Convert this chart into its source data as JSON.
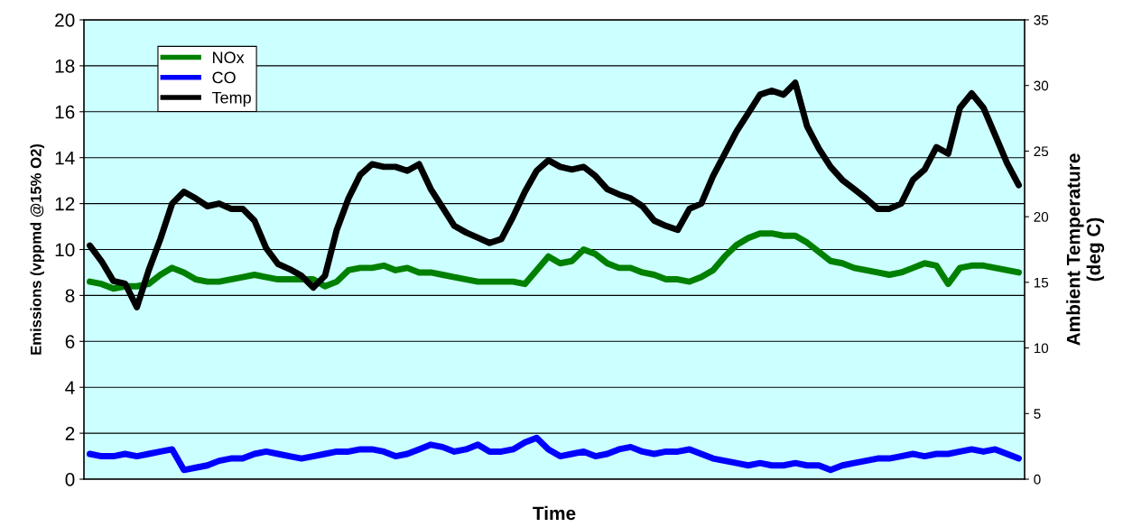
{
  "chart_data": {
    "type": "line",
    "xlabel": "Time",
    "ylabel": "Emissions (vppmd @15% O2)",
    "y2label": "Ambient Temperature\n(deg C)",
    "categories": [
      null,
      null,
      null,
      null,
      null,
      null,
      null,
      null,
      null,
      null,
      null,
      null,
      null,
      null,
      null,
      null,
      null,
      null,
      null,
      null,
      null,
      null,
      null,
      null,
      null,
      null,
      null,
      null,
      null,
      null,
      null,
      null,
      null,
      null,
      null,
      null,
      null,
      null,
      null,
      null,
      null,
      null,
      null,
      null,
      null,
      null,
      null,
      null,
      null,
      null,
      null,
      null,
      null,
      null,
      null,
      null,
      null,
      null,
      null,
      null,
      null,
      null,
      null,
      null,
      null,
      null,
      null,
      null,
      null,
      null,
      null,
      null,
      null,
      null,
      null,
      null,
      null,
      null,
      null,
      null
    ],
    "series": [
      {
        "name": "NOx",
        "color": "#008000",
        "values": [
          8.6,
          8.5,
          8.3,
          8.4,
          8.4,
          8.5,
          8.9,
          9.2,
          9.0,
          8.7,
          8.6,
          8.6,
          8.7,
          8.8,
          8.9,
          8.8,
          8.7,
          8.7,
          8.7,
          8.7,
          8.4,
          8.6,
          9.1,
          9.2,
          9.2,
          9.3,
          9.1,
          9.2,
          9.0,
          9.0,
          8.9,
          8.8,
          8.7,
          8.6,
          8.6,
          8.6,
          8.6,
          8.5,
          9.1,
          9.7,
          9.4,
          9.5,
          10.0,
          9.8,
          9.4,
          9.2,
          9.2,
          9.0,
          8.9,
          8.7,
          8.7,
          8.6,
          8.8,
          9.1,
          9.7,
          10.2,
          10.5,
          10.7,
          10.7,
          10.6,
          10.6,
          10.3,
          9.9,
          9.5,
          9.4,
          9.2,
          9.1,
          9.0,
          8.9,
          9.0,
          9.2,
          9.4,
          9.3,
          8.5,
          9.2,
          9.3,
          9.3,
          9.2,
          9.1,
          9.0
        ]
      },
      {
        "name": "CO",
        "color": "#0000ff",
        "values": [
          1.1,
          1.0,
          1.0,
          1.1,
          1.0,
          1.1,
          1.2,
          1.3,
          0.4,
          0.5,
          0.6,
          0.8,
          0.9,
          0.9,
          1.1,
          1.2,
          1.1,
          1.0,
          0.9,
          1.0,
          1.1,
          1.2,
          1.2,
          1.3,
          1.3,
          1.2,
          1.0,
          1.1,
          1.3,
          1.5,
          1.4,
          1.2,
          1.3,
          1.5,
          1.2,
          1.2,
          1.3,
          1.6,
          1.8,
          1.3,
          1.0,
          1.1,
          1.2,
          1.0,
          1.1,
          1.3,
          1.4,
          1.2,
          1.1,
          1.2,
          1.2,
          1.3,
          1.1,
          0.9,
          0.8,
          0.7,
          0.6,
          0.7,
          0.6,
          0.6,
          0.7,
          0.6,
          0.6,
          0.4,
          0.6,
          0.7,
          0.8,
          0.9,
          0.9,
          1.0,
          1.1,
          1.0,
          1.1,
          1.1,
          1.2,
          1.3,
          1.2,
          1.3,
          1.1,
          0.9
        ]
      },
      {
        "name": "Temp",
        "color": "#000000",
        "axis": "y2",
        "values": [
          17.8,
          16.6,
          15.1,
          14.9,
          13.1,
          15.9,
          18.3,
          21.0,
          21.9,
          21.4,
          20.8,
          21.0,
          20.6,
          20.6,
          19.7,
          17.6,
          16.4,
          16.0,
          15.5,
          14.6,
          15.5,
          19.0,
          21.4,
          23.2,
          24.0,
          23.8,
          23.8,
          23.5,
          24.0,
          22.1,
          20.7,
          19.3,
          18.8,
          18.4,
          18.0,
          18.3,
          20.0,
          21.9,
          23.5,
          24.3,
          23.8,
          23.6,
          23.8,
          23.1,
          22.1,
          21.7,
          21.4,
          20.8,
          19.7,
          19.3,
          19.0,
          20.6,
          21.0,
          23.1,
          24.8,
          26.5,
          27.9,
          29.3,
          29.6,
          29.3,
          30.2,
          26.9,
          25.2,
          23.8,
          22.8,
          22.1,
          21.4,
          20.6,
          20.6,
          21.0,
          22.8,
          23.6,
          25.3,
          24.8,
          28.3,
          29.4,
          28.3,
          26.2,
          24.1,
          22.4
        ]
      }
    ],
    "ylim": [
      0,
      20
    ],
    "yticks": [
      0,
      2,
      4,
      6,
      8,
      10,
      12,
      14,
      16,
      18,
      20
    ],
    "y2lim": [
      0,
      35
    ],
    "y2ticks": [
      0,
      5,
      10,
      15,
      20,
      25,
      30,
      35
    ],
    "grid": "y",
    "legend": "top left",
    "marker": "none",
    "line_style": "solid"
  }
}
